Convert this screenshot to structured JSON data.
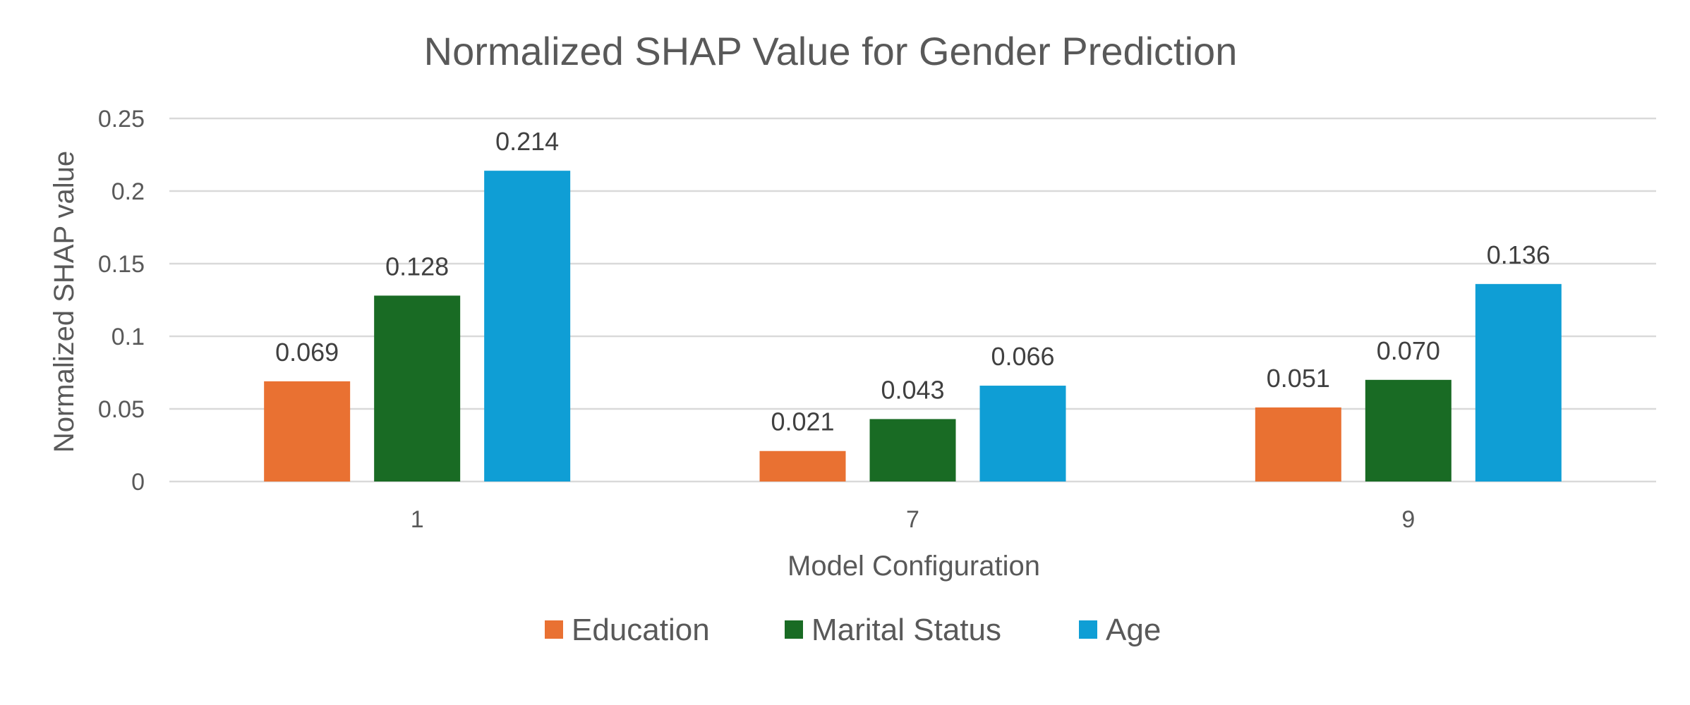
{
  "chart_data": {
    "type": "bar",
    "title": "Normalized SHAP Value for Gender Prediction",
    "xlabel": "Model Configuration",
    "ylabel": "Normalized SHAP value",
    "categories": [
      "1",
      "7",
      "9"
    ],
    "series": [
      {
        "name": "Education",
        "color": "#E97132",
        "values": [
          0.069,
          0.021,
          0.051
        ],
        "labels": [
          "0.069",
          "0.021",
          "0.051"
        ]
      },
      {
        "name": "Marital Status",
        "color": "#196B24",
        "values": [
          0.128,
          0.043,
          0.07
        ],
        "labels": [
          "0.128",
          "0.043",
          "0.070"
        ]
      },
      {
        "name": "Age",
        "color": "#0F9ED5",
        "values": [
          0.214,
          0.066,
          0.136
        ],
        "labels": [
          "0.214",
          "0.066",
          "0.136"
        ]
      }
    ],
    "ylim": [
      0,
      0.25
    ],
    "yticks": [
      0,
      0.05,
      0.1,
      0.15,
      0.2,
      0.25
    ],
    "ytick_labels": [
      "0",
      "0.05",
      "0.1",
      "0.15",
      "0.2",
      "0.25"
    ],
    "grid": true,
    "legend_position": "bottom"
  }
}
